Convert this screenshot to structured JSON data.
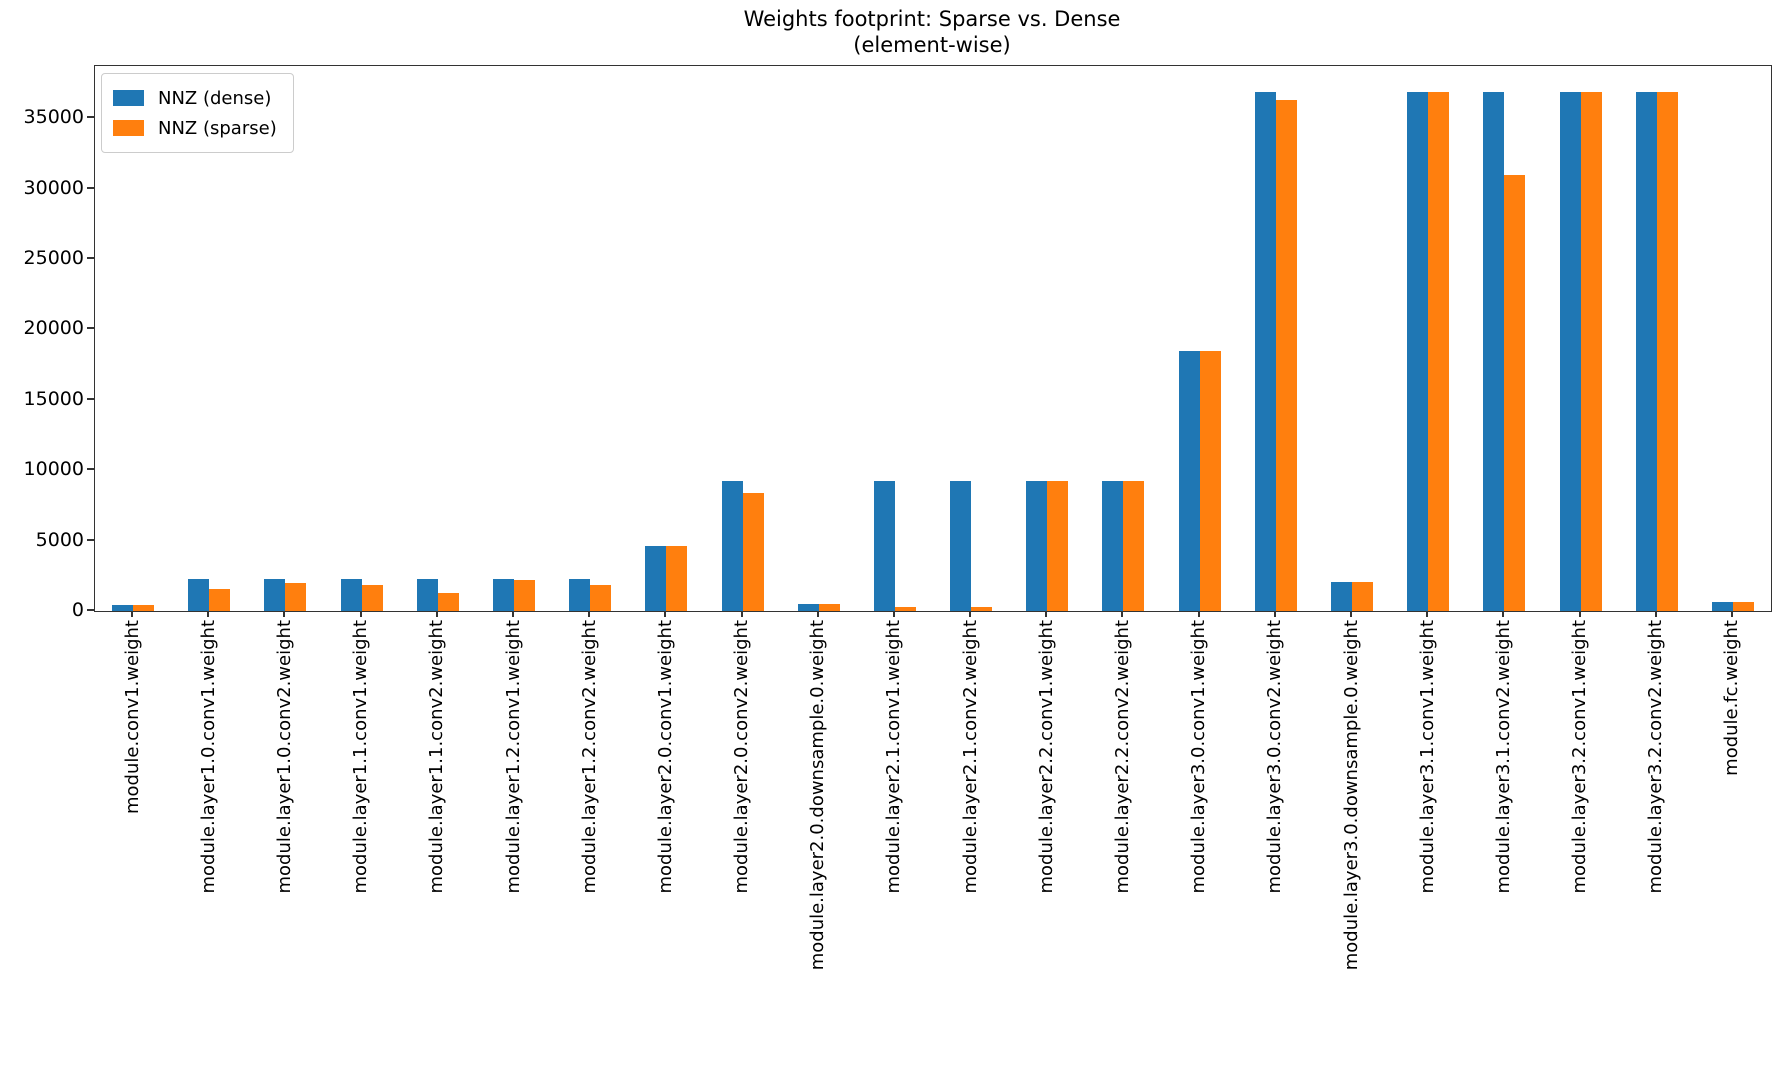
{
  "title": {
    "line1": "Weights footprint: Sparse vs. Dense",
    "line2": "(element-wise)"
  },
  "legend": {
    "items": [
      {
        "label": "NNZ (dense)",
        "color": "#1f77b4"
      },
      {
        "label": "NNZ (sparse)",
        "color": "#ff7f0e"
      }
    ],
    "position": "upper-left"
  },
  "colors": {
    "dense": "#1f77b4",
    "sparse": "#ff7f0e",
    "axis": "#333333",
    "text": "#000000",
    "background": "#ffffff"
  },
  "chart_data": {
    "type": "bar",
    "title": "Weights footprint: Sparse vs. Dense (element-wise)",
    "xlabel": "",
    "ylabel": "",
    "grid": false,
    "legend_position": "upper-left",
    "y_ticks": [
      0,
      5000,
      10000,
      15000,
      20000,
      25000,
      30000,
      35000
    ],
    "ylim": [
      0,
      38707
    ],
    "categories": [
      "module.conv1.weight",
      "module.layer1.0.conv1.weight",
      "module.layer1.0.conv2.weight",
      "module.layer1.1.conv1.weight",
      "module.layer1.1.conv2.weight",
      "module.layer1.2.conv1.weight",
      "module.layer1.2.conv2.weight",
      "module.layer2.0.conv1.weight",
      "module.layer2.0.conv2.weight",
      "module.layer2.0.downsample.0.weight",
      "module.layer2.1.conv1.weight",
      "module.layer2.1.conv2.weight",
      "module.layer2.2.conv1.weight",
      "module.layer2.2.conv2.weight",
      "module.layer3.0.conv1.weight",
      "module.layer3.0.conv2.weight",
      "module.layer3.0.downsample.0.weight",
      "module.layer3.1.conv1.weight",
      "module.layer3.1.conv2.weight",
      "module.layer3.2.conv1.weight",
      "module.layer3.2.conv2.weight",
      "module.fc.weight"
    ],
    "series": [
      {
        "name": "NNZ (dense)",
        "color": "#1f77b4",
        "values": [
          432,
          2304,
          2304,
          2304,
          2304,
          2304,
          2304,
          4608,
          9216,
          512,
          9216,
          9216,
          9216,
          9216,
          18432,
          36864,
          2048,
          36864,
          36864,
          36864,
          36864,
          640
        ]
      },
      {
        "name": "NNZ (sparse)",
        "color": "#ff7f0e",
        "values": [
          432,
          1570,
          1990,
          1870,
          1280,
          2170,
          1830,
          4608,
          8380,
          512,
          250,
          250,
          9216,
          9216,
          18432,
          36290,
          2048,
          36864,
          31000,
          36864,
          36864,
          640
        ]
      }
    ]
  }
}
